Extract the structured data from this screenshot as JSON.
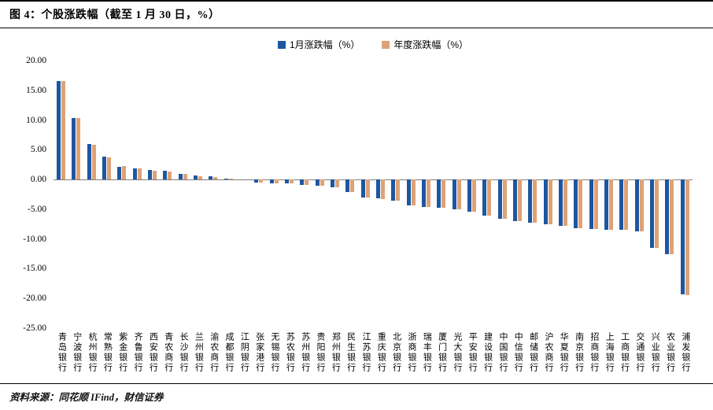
{
  "header": {
    "title": "图 4：个股涨跌幅（截至 1 月 30 日，%）"
  },
  "footer": {
    "source": "资料来源：同花顺 IFind，财信证券"
  },
  "chart_data": {
    "type": "bar",
    "title": "个股涨跌幅（截至1月30日，%）",
    "legend_position": "top-center",
    "grid": false,
    "ylim": [
      -25,
      20
    ],
    "yticks": [
      20,
      15,
      10,
      5,
      0,
      -5,
      -10,
      -15,
      -20,
      -25
    ],
    "ytick_decimals": 2,
    "categories": [
      "青岛银行",
      "宁波银行",
      "杭州银行",
      "常熟银行",
      "紫金银行",
      "齐鲁银行",
      "西安银行",
      "青农商行",
      "长沙银行",
      "兰州银行",
      "渝农商行",
      "成都银行",
      "江阴银行",
      "张家港行",
      "无锡银行",
      "苏农银行",
      "苏州银行",
      "贵阳银行",
      "郑州银行",
      "民生银行",
      "江苏银行",
      "重庆银行",
      "北京银行",
      "浙商银行",
      "瑞丰银行",
      "厦门银行",
      "光大银行",
      "平安银行",
      "建设银行",
      "中国银行",
      "中信银行",
      "邮储银行",
      "沪农商行",
      "华夏银行",
      "南京银行",
      "招商银行",
      "上海银行",
      "工商银行",
      "交通银行",
      "兴业银行",
      "农业银行",
      "浦发银行"
    ],
    "series": [
      {
        "name": "1月涨跌幅（%）",
        "color": "#1E56A0",
        "values": [
          16.6,
          10.3,
          6.0,
          3.8,
          2.1,
          1.9,
          1.6,
          1.5,
          1.0,
          0.7,
          0.5,
          0.1,
          0.0,
          -0.5,
          -0.6,
          -0.7,
          -0.9,
          -1.0,
          -1.3,
          -2.1,
          -3.0,
          -3.2,
          -3.5,
          -4.3,
          -4.6,
          -4.8,
          -5.0,
          -5.4,
          -6.1,
          -6.6,
          -7.0,
          -7.2,
          -7.5,
          -7.8,
          -8.2,
          -8.3,
          -8.4,
          -8.5,
          -8.7,
          -11.5,
          -12.6,
          -19.3
        ]
      },
      {
        "name": "年度涨跌幅（%）",
        "color": "#DEA276",
        "values": [
          16.6,
          10.4,
          5.9,
          3.7,
          2.3,
          1.9,
          1.5,
          1.4,
          1.0,
          0.6,
          0.4,
          0.1,
          0.0,
          -0.5,
          -0.6,
          -0.7,
          -0.9,
          -1.1,
          -1.3,
          -2.1,
          -3.0,
          -3.3,
          -3.5,
          -4.3,
          -4.6,
          -4.8,
          -5.0,
          -5.4,
          -6.1,
          -6.6,
          -7.0,
          -7.2,
          -7.5,
          -7.8,
          -8.2,
          -8.3,
          -8.4,
          -8.5,
          -8.7,
          -11.5,
          -12.6,
          -19.4
        ]
      }
    ]
  }
}
